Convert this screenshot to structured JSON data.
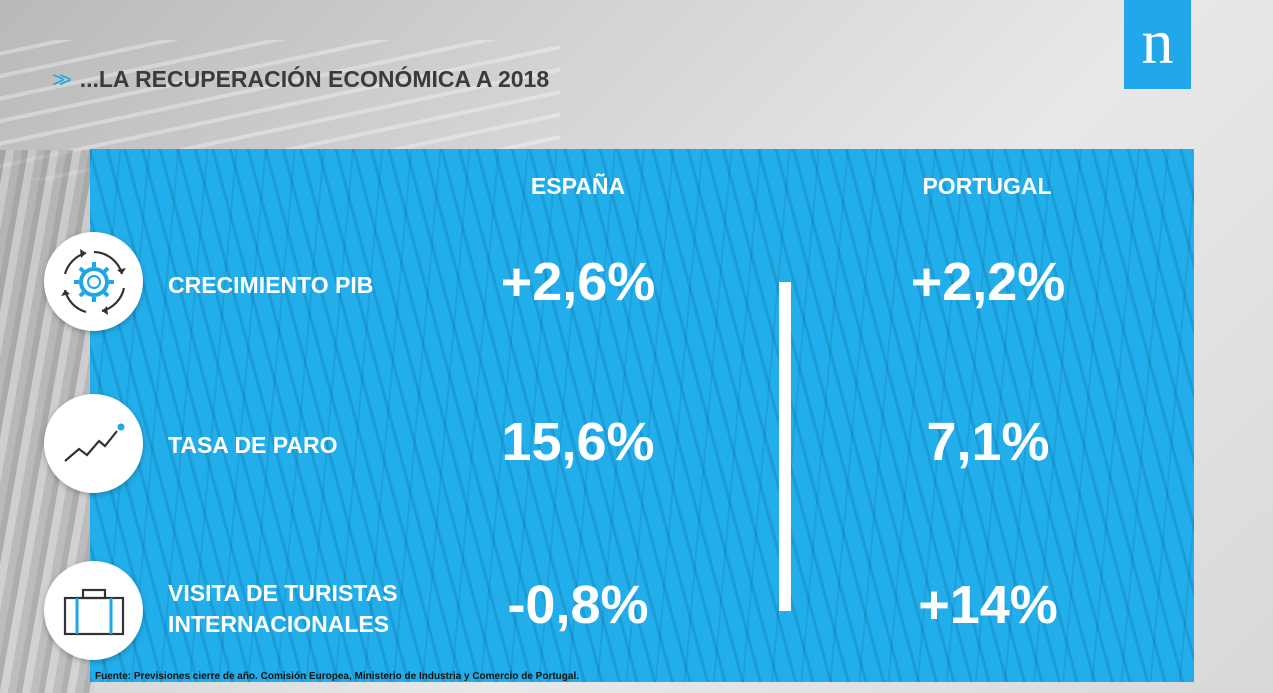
{
  "header": {
    "chevron": ">>",
    "title": "...LA RECUPERACIÓN ECONÓMICA A 2018",
    "logo_letter": "n"
  },
  "columns": [
    "ESPAÑA",
    "PORTUGAL"
  ],
  "rows": [
    {
      "label": "CRECIMIENTO PIB",
      "icon": "gear-cycle-icon",
      "espana": "+2,6%",
      "portugal": "+2,2%"
    },
    {
      "label": "TASA DE PARO",
      "icon": "trend-line-icon",
      "espana": "15,6%",
      "portugal": "7,1%"
    },
    {
      "label_line1": "VISITA DE TURISTAS",
      "label_line2": "INTERNACIONALES",
      "icon": "suitcase-icon",
      "espana": "-0,8%",
      "portugal": "+14%"
    }
  ],
  "source": "Fuente: Previsiones cierre de año. Comisión Europea, Ministerio de Industria y Comercio de Portugal.",
  "colors": {
    "accent": "#22aeea",
    "title": "#3b3b3b",
    "icon_dark": "#333333"
  }
}
